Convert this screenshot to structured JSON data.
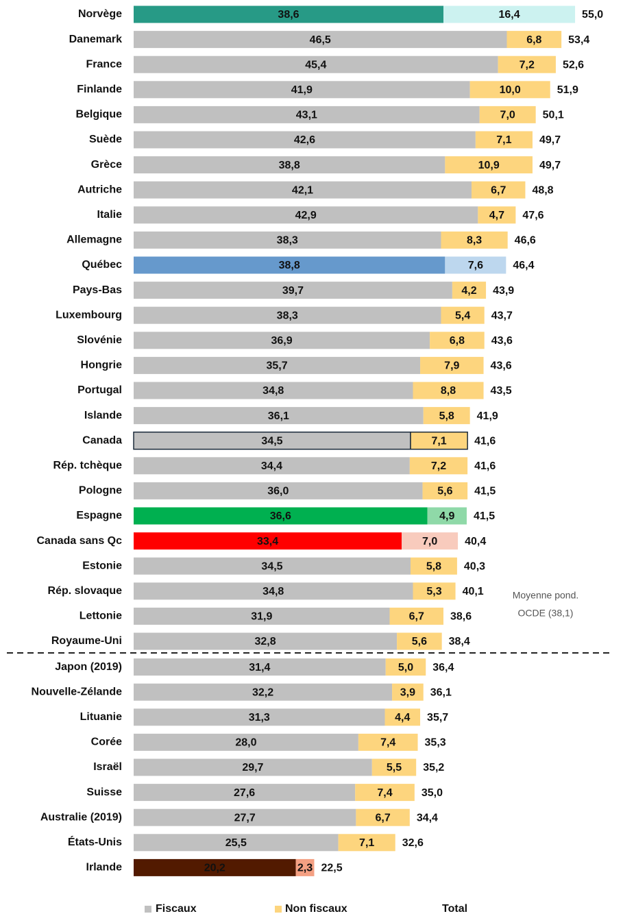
{
  "chart_data": {
    "type": "stacked-barh",
    "categories": [
      "Norvège",
      "Danemark",
      "France",
      "Finlande",
      "Belgique",
      "Suède",
      "Grèce",
      "Autriche",
      "Italie",
      "Allemagne",
      "Québec",
      "Pays-Bas",
      "Luxembourg",
      "Slovénie",
      "Hongrie",
      "Portugal",
      "Islande",
      "Canada",
      "Rép. tchèque",
      "Pologne",
      "Espagne",
      "Canada sans Qc",
      "Estonie",
      "Rép. slovaque",
      "Lettonie",
      "Royaume-Uni",
      "Japon (2019)",
      "Nouvelle-Zélande",
      "Lituanie",
      "Corée",
      "Israël",
      "Suisse",
      "Australie (2019)",
      "États-Unis",
      "Irlande"
    ],
    "series": [
      {
        "name": "Fiscaux",
        "color": "#c0c0c0",
        "values": [
          38.6,
          46.5,
          45.4,
          41.9,
          43.1,
          42.6,
          38.8,
          42.1,
          42.9,
          38.3,
          38.8,
          39.7,
          38.3,
          36.9,
          35.7,
          34.8,
          36.1,
          34.5,
          34.4,
          36.0,
          36.6,
          33.4,
          34.5,
          34.8,
          31.9,
          32.8,
          31.4,
          32.2,
          31.3,
          28.0,
          29.7,
          27.6,
          27.7,
          25.5,
          20.2
        ],
        "value_labels": [
          "38,6",
          "46,5",
          "45,4",
          "41,9",
          "43,1",
          "42,6",
          "38,8",
          "42,1",
          "42,9",
          "38,3",
          "38,8",
          "39,7",
          "38,3",
          "36,9",
          "35,7",
          "34,8",
          "36,1",
          "34,5",
          "34,4",
          "36,0",
          "36,6",
          "33,4",
          "34,5",
          "34,8",
          "31,9",
          "32,8",
          "31,4",
          "32,2",
          "31,3",
          "28,0",
          "29,7",
          "27,6",
          "27,7",
          "25,5",
          "20,2"
        ],
        "colors": [
          "#279a86",
          "#c0c0c0",
          "#c0c0c0",
          "#c0c0c0",
          "#c0c0c0",
          "#c0c0c0",
          "#c0c0c0",
          "#c0c0c0",
          "#c0c0c0",
          "#c0c0c0",
          "#6699cc",
          "#c0c0c0",
          "#c0c0c0",
          "#c0c0c0",
          "#c0c0c0",
          "#c0c0c0",
          "#c0c0c0",
          "#c0c0c0",
          "#c0c0c0",
          "#c0c0c0",
          "#00b050",
          "#ff0000",
          "#c0c0c0",
          "#c0c0c0",
          "#c0c0c0",
          "#c0c0c0",
          "#c0c0c0",
          "#c0c0c0",
          "#c0c0c0",
          "#c0c0c0",
          "#c0c0c0",
          "#c0c0c0",
          "#c0c0c0",
          "#c0c0c0",
          "#521a00"
        ]
      },
      {
        "name": "Non fiscaux",
        "color": "#fdd57e",
        "values": [
          16.4,
          6.8,
          7.2,
          10.0,
          7.0,
          7.1,
          10.9,
          6.7,
          4.7,
          8.3,
          7.6,
          4.2,
          5.4,
          6.8,
          7.9,
          8.8,
          5.8,
          7.1,
          7.2,
          5.6,
          4.9,
          7.0,
          5.8,
          5.3,
          6.7,
          5.6,
          5.0,
          3.9,
          4.4,
          7.4,
          5.5,
          7.4,
          6.7,
          7.1,
          2.3
        ],
        "value_labels": [
          "16,4",
          "6,8",
          "7,2",
          "10,0",
          "7,0",
          "7,1",
          "10,9",
          "6,7",
          "4,7",
          "8,3",
          "7,6",
          "4,2",
          "5,4",
          "6,8",
          "7,9",
          "8,8",
          "5,8",
          "7,1",
          "7,2",
          "5,6",
          "4,9",
          "7,0",
          "5,8",
          "5,3",
          "6,7",
          "5,6",
          "5,0",
          "3,9",
          "4,4",
          "7,4",
          "5,5",
          "7,4",
          "6,7",
          "7,1",
          "2,3"
        ],
        "colors": [
          "#ccf2f0",
          "#fdd57e",
          "#fdd57e",
          "#fdd57e",
          "#fdd57e",
          "#fdd57e",
          "#fdd57e",
          "#fdd57e",
          "#fdd57e",
          "#fdd57e",
          "#bdd7ee",
          "#fdd57e",
          "#fdd57e",
          "#fdd57e",
          "#fdd57e",
          "#fdd57e",
          "#fdd57e",
          "#fdd57e",
          "#fdd57e",
          "#fdd57e",
          "#8fd9a8",
          "#f8cbbd",
          "#fdd57e",
          "#fdd57e",
          "#fdd57e",
          "#fdd57e",
          "#fdd57e",
          "#fdd57e",
          "#fdd57e",
          "#fdd57e",
          "#fdd57e",
          "#fdd57e",
          "#fdd57e",
          "#fdd57e",
          "#f4a083"
        ]
      },
      {
        "name": "Total",
        "values": [
          55.0,
          53.4,
          52.6,
          51.9,
          50.1,
          49.7,
          49.7,
          48.8,
          47.6,
          46.6,
          46.4,
          43.9,
          43.7,
          43.6,
          43.6,
          43.5,
          41.9,
          41.6,
          41.6,
          41.5,
          41.5,
          40.4,
          40.3,
          40.1,
          38.6,
          38.4,
          36.4,
          36.1,
          35.7,
          35.3,
          35.2,
          35.0,
          34.4,
          32.6,
          22.5
        ],
        "value_labels": [
          "55,0",
          "53,4",
          "52,6",
          "51,9",
          "50,1",
          "49,7",
          "49,7",
          "48,8",
          "47,6",
          "46,6",
          "46,4",
          "43,9",
          "43,7",
          "43,6",
          "43,6",
          "43,5",
          "41,9",
          "41,6",
          "41,6",
          "41,5",
          "41,5",
          "40,4",
          "40,3",
          "40,1",
          "38,6",
          "38,4",
          "36,4",
          "36,1",
          "35,7",
          "35,3",
          "35,2",
          "35,0",
          "34,4",
          "32,6",
          "22,5"
        ]
      }
    ],
    "outlines": [
      null,
      null,
      null,
      null,
      null,
      null,
      null,
      null,
      null,
      null,
      null,
      null,
      null,
      null,
      null,
      null,
      null,
      "#1a2a3a",
      null,
      null,
      null,
      null,
      null,
      null,
      null,
      null,
      null,
      null,
      null,
      null,
      null,
      null,
      null,
      null,
      null
    ],
    "annotation": [
      "Moyenne pond.",
      "OCDE (38,1)"
    ]
  }
}
